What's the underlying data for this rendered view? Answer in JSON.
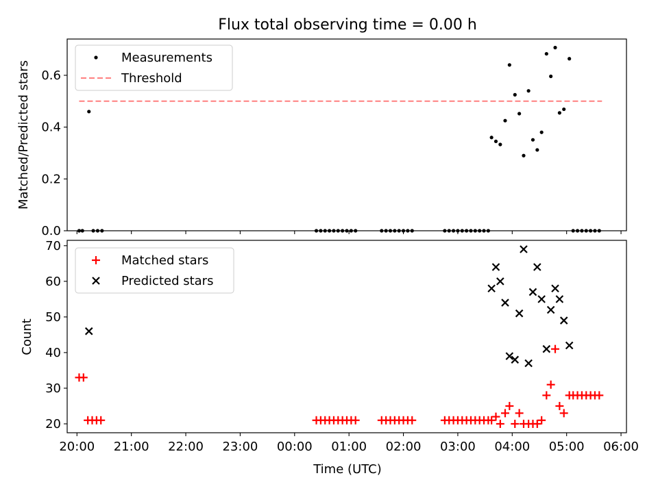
{
  "title": "Flux total observing time = 0.00 h",
  "x_axis": {
    "label": "Time (UTC)",
    "ticks": [
      "20:00",
      "21:00",
      "22:00",
      "23:00",
      "00:00",
      "01:00",
      "02:00",
      "03:00",
      "04:00",
      "05:00",
      "06:00"
    ],
    "range_hours": [
      19.82,
      30.1
    ]
  },
  "colors": {
    "measurements": "#000000",
    "threshold": "#ff7f7f",
    "matched": "#ff0000",
    "predicted": "#000000"
  },
  "chart_data": [
    {
      "type": "scatter",
      "panel": "top",
      "ylabel": "Matched/Predicted stars",
      "ylim": [
        0,
        0.74
      ],
      "yticks": [
        "0.0",
        "0.2",
        "0.4",
        "0.6"
      ],
      "yticks_values": [
        0,
        0.2,
        0.4,
        0.6
      ],
      "legend": {
        "placement": "top-left",
        "entries": [
          "Measurements",
          "Threshold"
        ]
      },
      "series": [
        {
          "name": "Measurements",
          "x_hours": [
            20.04,
            20.1,
            20.22,
            20.3,
            20.38,
            20.46,
            24.4,
            24.48,
            24.56,
            24.64,
            24.72,
            24.8,
            24.88,
            24.96,
            25.04,
            25.12,
            25.6,
            25.68,
            25.76,
            25.84,
            25.92,
            26.0,
            26.08,
            26.16,
            26.76,
            26.84,
            26.92,
            27.0,
            27.08,
            27.16,
            27.24,
            27.32,
            27.4,
            27.48,
            27.56,
            27.62,
            27.7,
            27.78,
            27.87,
            27.95,
            28.05,
            28.13,
            28.21,
            28.3,
            28.38,
            28.46,
            28.54,
            28.63,
            28.71,
            28.79,
            28.87,
            28.95,
            29.05,
            29.12,
            29.2,
            29.28,
            29.36,
            29.44,
            29.52,
            29.6
          ],
          "y": [
            0,
            0,
            0.46,
            0,
            0,
            0,
            0,
            0,
            0,
            0,
            0,
            0,
            0,
            0,
            0,
            0,
            0,
            0,
            0,
            0,
            0,
            0,
            0,
            0,
            0,
            0,
            0,
            0,
            0,
            0,
            0,
            0,
            0,
            0,
            0,
            0.36,
            0.345,
            0.333,
            0.425,
            0.64,
            0.525,
            0.452,
            0.29,
            0.54,
            0.351,
            0.312,
            0.38,
            0.683,
            0.596,
            0.707,
            0.455,
            0.469,
            0.664,
            0,
            0,
            0,
            0,
            0,
            0,
            0
          ]
        },
        {
          "name": "Threshold",
          "style": "dashed",
          "x_hours": [
            20.04,
            29.65
          ],
          "y": [
            0.5,
            0.5
          ]
        }
      ]
    },
    {
      "type": "scatter",
      "panel": "bottom",
      "xlabel": "Time (UTC)",
      "ylabel": "Count",
      "ylim": [
        17.5,
        71.5
      ],
      "yticks": [
        "20",
        "30",
        "40",
        "50",
        "60",
        "70"
      ],
      "yticks_values": [
        20,
        30,
        40,
        50,
        60,
        70
      ],
      "legend": {
        "placement": "top-left",
        "entries": [
          "Matched stars",
          "Predicted stars"
        ]
      },
      "series": [
        {
          "name": "Matched stars",
          "marker": "+",
          "x_hours": [
            20.04,
            20.12,
            20.2,
            20.28,
            20.36,
            20.44,
            24.4,
            24.48,
            24.56,
            24.64,
            24.72,
            24.8,
            24.88,
            24.96,
            25.04,
            25.12,
            25.6,
            25.68,
            25.76,
            25.84,
            25.92,
            26.0,
            26.08,
            26.16,
            26.76,
            26.84,
            26.92,
            27.0,
            27.08,
            27.16,
            27.24,
            27.32,
            27.4,
            27.48,
            27.56,
            27.62,
            27.7,
            27.78,
            27.87,
            27.95,
            28.05,
            28.13,
            28.21,
            28.3,
            28.38,
            28.46,
            28.54,
            28.63,
            28.71,
            28.79,
            28.87,
            28.95,
            29.05,
            29.12,
            29.2,
            29.28,
            29.36,
            29.44,
            29.52,
            29.6
          ],
          "y": [
            33,
            33,
            21,
            21,
            21,
            21,
            21,
            21,
            21,
            21,
            21,
            21,
            21,
            21,
            21,
            21,
            21,
            21,
            21,
            21,
            21,
            21,
            21,
            21,
            21,
            21,
            21,
            21,
            21,
            21,
            21,
            21,
            21,
            21,
            21,
            21,
            22,
            20,
            23,
            25,
            20,
            23,
            20,
            20,
            20,
            20,
            21,
            28,
            31,
            41,
            25,
            23,
            28,
            28,
            28,
            28,
            28,
            28,
            28,
            28
          ]
        },
        {
          "name": "Predicted stars",
          "marker": "x",
          "x_hours": [
            20.22,
            27.62,
            27.7,
            27.78,
            27.87,
            27.95,
            28.05,
            28.13,
            28.21,
            28.3,
            28.38,
            28.46,
            28.54,
            28.63,
            28.71,
            28.79,
            28.87,
            28.95,
            29.05
          ],
          "y": [
            46,
            58,
            64,
            60,
            54,
            39,
            38,
            51,
            69,
            37,
            57,
            64,
            55,
            41,
            52,
            58,
            55,
            49,
            42
          ]
        }
      ]
    }
  ]
}
